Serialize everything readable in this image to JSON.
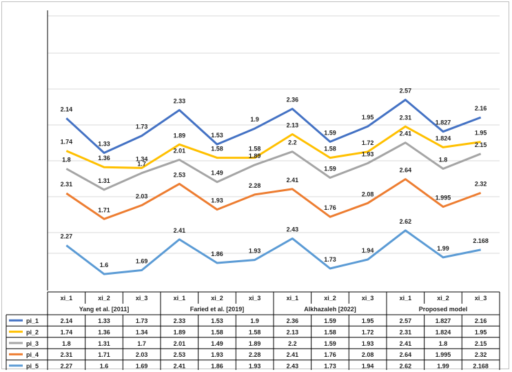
{
  "chart_data": {
    "type": "line",
    "title": "",
    "xlabel": "",
    "ylabel": "",
    "grid": true,
    "legend": "table-left",
    "groups": [
      "Yang et al. [2011]",
      "Faried et al. [2019]",
      "Alkhazaleh [2022]",
      "Proposed model"
    ],
    "categories": [
      "xi_1",
      "xi_2",
      "xi_3",
      "xi_1",
      "xi_2",
      "xi_3",
      "xi_1",
      "xi_2",
      "xi_3",
      "xi_1",
      "xi_2",
      "xi_3"
    ],
    "series": [
      {
        "name": "pi_1",
        "color": "#4472c4",
        "values": [
          2.14,
          1.33,
          1.73,
          2.33,
          1.53,
          1.9,
          2.36,
          1.59,
          1.95,
          2.57,
          1.827,
          2.16
        ],
        "labels": [
          "2.14",
          "1.33",
          "1.73",
          "2.33",
          "1.53",
          "1.9",
          "2.36",
          "1.59",
          "1.95",
          "2.57",
          "1.827",
          "2.16"
        ]
      },
      {
        "name": "pi_2",
        "color": "#ffc000",
        "values": [
          1.74,
          1.36,
          1.34,
          1.89,
          1.58,
          1.58,
          2.13,
          1.58,
          1.72,
          2.31,
          1.824,
          1.95
        ],
        "labels": [
          "1.74",
          "1.36",
          "1.34",
          "1.89",
          "1.58",
          "1.58",
          "2.13",
          "1.58",
          "1.72",
          "2.31",
          "1.824",
          "1.95"
        ]
      },
      {
        "name": "pi_3",
        "color": "#a5a5a5",
        "values": [
          1.8,
          1.31,
          1.7,
          2.01,
          1.49,
          1.89,
          2.2,
          1.59,
          1.93,
          2.41,
          1.8,
          2.15
        ],
        "labels": [
          "1.8",
          "1.31",
          "1.7",
          "2.01",
          "1.49",
          "1.89",
          "2.2",
          "1.59",
          "1.93",
          "2.41",
          "1.8",
          "2.15"
        ]
      },
      {
        "name": "pi_4",
        "color": "#ed7d31",
        "values": [
          2.31,
          1.71,
          2.03,
          2.53,
          1.93,
          2.28,
          2.41,
          1.76,
          2.08,
          2.64,
          1.995,
          2.32
        ],
        "labels": [
          "2.31",
          "1.71",
          "2.03",
          "2.53",
          "1.93",
          "2.28",
          "2.41",
          "1.76",
          "2.08",
          "2.64",
          "1.995",
          "2.32"
        ]
      },
      {
        "name": "pi_5",
        "color": "#5b9bd5",
        "values": [
          2.27,
          1.6,
          1.69,
          2.41,
          1.86,
          1.93,
          2.43,
          1.73,
          1.94,
          2.62,
          1.99,
          2.168
        ],
        "labels": [
          "2.27",
          "1.6",
          "1.69",
          "2.41",
          "1.86",
          "1.93",
          "2.43",
          "1.73",
          "1.94",
          "2.62",
          "1.99",
          "2.168"
        ]
      }
    ]
  }
}
